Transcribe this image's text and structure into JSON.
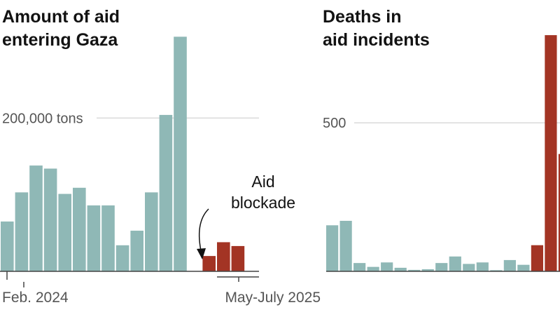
{
  "colors": {
    "normal": "#8fb8b6",
    "highlight": "#a33424",
    "grid": "#c8c8c8",
    "axis": "#444444",
    "text": "#121212",
    "label": "#666666"
  },
  "chart_data": [
    {
      "type": "bar",
      "title": "Amount of aid entering Gaza",
      "title_lines": [
        "Amount of aid",
        "entering Gaza"
      ],
      "xlabel": "",
      "ylabel": "",
      "ylim": [
        0,
        310000
      ],
      "grid": true,
      "gridline_value": 200000,
      "gridline_label": "200,000 tons",
      "x_tick_labels": [
        "Feb. 2024",
        "May-July 2025"
      ],
      "values": [
        65000,
        103000,
        138000,
        134000,
        101000,
        109000,
        86000,
        86000,
        34000,
        53000,
        103000,
        204000,
        306000,
        0,
        20000,
        38000,
        33000
      ],
      "highlight": [
        false,
        false,
        false,
        false,
        false,
        false,
        false,
        false,
        false,
        false,
        false,
        false,
        false,
        false,
        true,
        true,
        true
      ],
      "annotation": [
        "Aid",
        "blockade"
      ]
    },
    {
      "type": "bar",
      "title": "Deaths in aid incidents",
      "title_lines": [
        "Deaths in",
        "aid incidents"
      ],
      "xlabel": "",
      "ylabel": "",
      "ylim": [
        0,
        800
      ],
      "grid": true,
      "gridline_value": 500,
      "gridline_label": "500",
      "values": [
        155,
        170,
        28,
        15,
        30,
        12,
        5,
        7,
        28,
        50,
        25,
        30,
        4,
        38,
        22,
        88,
        795,
        395
      ],
      "highlight": [
        false,
        false,
        false,
        false,
        false,
        false,
        false,
        false,
        false,
        false,
        false,
        false,
        false,
        false,
        false,
        true,
        true,
        true
      ]
    }
  ]
}
